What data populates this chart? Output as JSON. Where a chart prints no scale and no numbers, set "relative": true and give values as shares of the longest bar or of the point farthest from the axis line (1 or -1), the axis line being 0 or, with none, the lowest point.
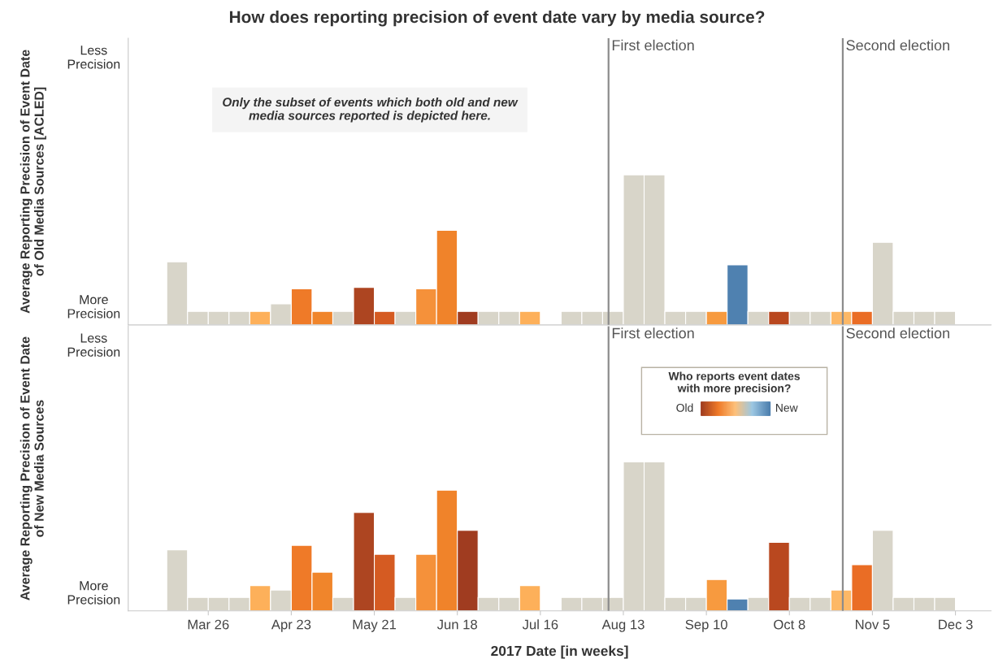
{
  "chart_data": [
    {
      "type": "bar",
      "title": "How does reporting precision of event date vary by media source?",
      "ylabel": "Average Reporting Precision of Event Date\nof Old Media Sources [ACLED]",
      "relative": true,
      "x": [
        "2017-03-15T12:00",
        "2017-03-22T12:00",
        "2017-03-29T12:00",
        "2017-04-05T12:00",
        "2017-04-12T12:00",
        "2017-04-19T12:00",
        "2017-04-26T12:00",
        "2017-05-03T12:00",
        "2017-05-10T12:00",
        "2017-05-17T12:00",
        "2017-05-24T12:00",
        "2017-05-31T12:00",
        "2017-06-07T12:00",
        "2017-06-14T12:00",
        "2017-06-21T12:00",
        "2017-06-28T12:00",
        "2017-07-05T12:00",
        "2017-07-12T12:00",
        "2017-07-26T12:00",
        "2017-08-02T12:00",
        "2017-08-09T12:00",
        "2017-08-16T12:00",
        "2017-08-23T12:00",
        "2017-08-30T12:00",
        "2017-09-06T12:00",
        "2017-09-13T12:00",
        "2017-09-20T12:00",
        "2017-09-27T12:00",
        "2017-10-04T12:00",
        "2017-10-11T12:00",
        "2017-10-18T12:00",
        "2017-10-25T12:00",
        "2017-11-01T12:00",
        "2017-11-08T12:00",
        "2017-11-15T12:00",
        "2017-11-22T12:00",
        "2017-11-29T12:00"
      ],
      "series": [
        {
          "values": [
            0.42,
            0.09,
            0.09,
            0.09,
            0.09,
            0.14,
            0.24,
            0.09,
            0.09,
            0.25,
            0.09,
            0.09,
            0.24,
            0.63,
            0.09,
            0.09,
            0.09,
            0.09,
            0.09,
            0.09,
            0.09,
            1,
            1,
            0.09,
            0.09,
            0.09,
            0.4,
            0.09,
            0.09,
            0.09,
            0.09,
            0.09,
            0.09,
            0.55,
            0.09,
            0.09,
            0.09
          ],
          "colors": [
            "#d8d5c9",
            "#d8d5c9",
            "#d8d5c9",
            "#d8d5c9",
            "#fdb05a",
            "#d8d5c9",
            "#ef7a28",
            "#f0852b",
            "#d8d5c9",
            "#ad4521",
            "#d55b22",
            "#d8d5c9",
            "#f5913a",
            "#f0832a",
            "#a03c20",
            "#d8d5c9",
            "#d8d5c9",
            "#fdb05a",
            "#d8d5c9",
            "#d8d5c9",
            "#d8d5c9",
            "#d8d5c9",
            "#d8d5c9",
            "#d8d5c9",
            "#d8d5c9",
            "#f79a3f",
            "#4f81b0",
            "#d8d5c9",
            "#b9481f",
            "#d8d5c9",
            "#d8d5c9",
            "#fdb866",
            "#ea6d25",
            "#d8d5c9",
            "#d8d5c9",
            "#d8d5c9",
            "#d8d5c9"
          ]
        }
      ],
      "xlim": [
        "2017-02-27",
        "2017-12-15"
      ],
      "tick_labels": false,
      "ref_lines": [
        {
          "axis": "x",
          "value": "2017-08-08",
          "label": "First election",
          "color": "#8c8c8c"
        },
        {
          "axis": "x",
          "value": "2017-10-26",
          "label": "Second election",
          "color": "#8c8c8c"
        }
      ],
      "annotations": [
        "Less\nPrecision",
        "More\nPrecision",
        "Only the subset of events which both old and new\nmedia sources reported is depicted here."
      ]
    },
    {
      "type": "bar",
      "ylabel": "Average Reporting Precision of Event Date\nof New Media Sources",
      "xlabel": "2017 Date [in weeks]",
      "relative": true,
      "x": [
        "2017-03-15T12:00",
        "2017-03-22T12:00",
        "2017-03-29T12:00",
        "2017-04-05T12:00",
        "2017-04-12T12:00",
        "2017-04-19T12:00",
        "2017-04-26T12:00",
        "2017-05-03T12:00",
        "2017-05-10T12:00",
        "2017-05-17T12:00",
        "2017-05-24T12:00",
        "2017-05-31T12:00",
        "2017-06-07T12:00",
        "2017-06-14T12:00",
        "2017-06-21T12:00",
        "2017-06-28T12:00",
        "2017-07-05T12:00",
        "2017-07-12T12:00",
        "2017-07-26T12:00",
        "2017-08-02T12:00",
        "2017-08-09T12:00",
        "2017-08-16T12:00",
        "2017-08-23T12:00",
        "2017-08-30T12:00",
        "2017-09-06T12:00",
        "2017-09-13T12:00",
        "2017-09-20T12:00",
        "2017-09-27T12:00",
        "2017-10-04T12:00",
        "2017-10-11T12:00",
        "2017-10-18T12:00",
        "2017-10-25T12:00",
        "2017-11-01T12:00",
        "2017-11-08T12:00",
        "2017-11-15T12:00",
        "2017-11-22T12:00",
        "2017-11-29T12:00"
      ],
      "series": [
        {
          "values": [
            0.41,
            0.09,
            0.09,
            0.09,
            0.17,
            0.14,
            0.44,
            0.26,
            0.09,
            0.66,
            0.38,
            0.09,
            0.38,
            0.81,
            0.54,
            0.09,
            0.09,
            0.17,
            0.09,
            0.09,
            0.09,
            1,
            1,
            0.09,
            0.09,
            0.21,
            0.08,
            0.09,
            0.46,
            0.09,
            0.09,
            0.14,
            0.31,
            0.54,
            0.09,
            0.09,
            0.09
          ],
          "colors": [
            "#d8d5c9",
            "#d8d5c9",
            "#d8d5c9",
            "#d8d5c9",
            "#fdb05a",
            "#d8d5c9",
            "#ef7a28",
            "#f0852b",
            "#d8d5c9",
            "#ad4521",
            "#d55b22",
            "#d8d5c9",
            "#f5913a",
            "#f0832a",
            "#a03c20",
            "#d8d5c9",
            "#d8d5c9",
            "#fdb05a",
            "#d8d5c9",
            "#d8d5c9",
            "#d8d5c9",
            "#d8d5c9",
            "#d8d5c9",
            "#d8d5c9",
            "#d8d5c9",
            "#f79a3f",
            "#4f81b0",
            "#d8d5c9",
            "#b9481f",
            "#d8d5c9",
            "#d8d5c9",
            "#fdb866",
            "#ea6d25",
            "#d8d5c9",
            "#d8d5c9",
            "#d8d5c9",
            "#d8d5c9"
          ]
        }
      ],
      "xlim": [
        "2017-02-27",
        "2017-12-15"
      ],
      "xticks": [
        {
          "value": "2017-03-26",
          "label": "Mar 26"
        },
        {
          "value": "2017-04-23",
          "label": "Apr 23"
        },
        {
          "value": "2017-05-21",
          "label": "May 21"
        },
        {
          "value": "2017-06-18",
          "label": "Jun 18"
        },
        {
          "value": "2017-07-16",
          "label": "Jul 16"
        },
        {
          "value": "2017-08-13",
          "label": "Aug 13"
        },
        {
          "value": "2017-09-10",
          "label": "Sep 10"
        },
        {
          "value": "2017-10-08",
          "label": "Oct 8"
        },
        {
          "value": "2017-11-05",
          "label": "Nov 5"
        },
        {
          "value": "2017-12-03",
          "label": "Dec 3"
        }
      ],
      "tick_labels": "x",
      "ref_lines": [
        {
          "axis": "x",
          "value": "2017-08-08",
          "label": "First election",
          "color": "#8c8c8c"
        },
        {
          "axis": "x",
          "value": "2017-10-26",
          "label": "Second election",
          "color": "#8c8c8c"
        }
      ],
      "annotations": [
        "Less\nPrecision",
        "More\nPrecision",
        "Who reports event dates\nwith more precision?",
        "Old",
        "New"
      ]
    }
  ]
}
